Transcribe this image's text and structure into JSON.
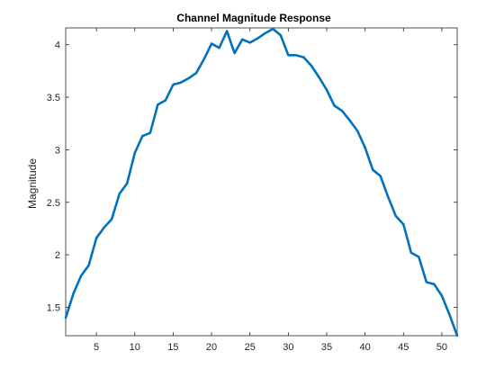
{
  "chart_data": {
    "type": "line",
    "title": "Channel Magnitude Response",
    "xlabel": "",
    "ylabel": "Magnitude",
    "xlim": [
      1,
      52
    ],
    "ylim": [
      1.23,
      4.16
    ],
    "xticks": [
      5,
      10,
      15,
      20,
      25,
      30,
      35,
      40,
      45,
      50
    ],
    "yticks": [
      1.5,
      2,
      2.5,
      3,
      3.5,
      4
    ],
    "ytick_labels": [
      "1.5",
      "2",
      "2.5",
      "3",
      "3.5",
      "4"
    ],
    "grid": false,
    "line_color": "#0072BD",
    "series": [
      {
        "x": [
          1,
          2,
          3,
          4,
          5,
          6,
          7,
          8,
          9,
          10,
          11,
          12,
          13,
          14,
          15,
          16,
          17,
          18,
          19,
          20,
          21,
          22,
          23,
          24,
          25,
          26,
          27,
          28,
          29,
          30,
          31,
          32,
          33,
          34,
          35,
          36,
          37,
          38,
          39,
          40,
          41,
          42,
          43,
          44,
          45,
          46,
          47,
          48,
          49,
          50,
          51,
          52
        ],
        "values": [
          1.4,
          1.63,
          1.8,
          1.9,
          2.16,
          2.26,
          2.34,
          2.58,
          2.68,
          2.97,
          3.13,
          3.16,
          3.43,
          3.47,
          3.62,
          3.64,
          3.68,
          3.73,
          3.86,
          4.01,
          3.97,
          4.13,
          3.92,
          4.05,
          4.02,
          4.06,
          4.11,
          4.15,
          4.09,
          3.9,
          3.9,
          3.88,
          3.8,
          3.69,
          3.57,
          3.42,
          3.37,
          3.28,
          3.18,
          3.02,
          2.81,
          2.75,
          2.55,
          2.37,
          2.29,
          2.02,
          1.98,
          1.74,
          1.72,
          1.61,
          1.43,
          1.23
        ]
      }
    ]
  }
}
